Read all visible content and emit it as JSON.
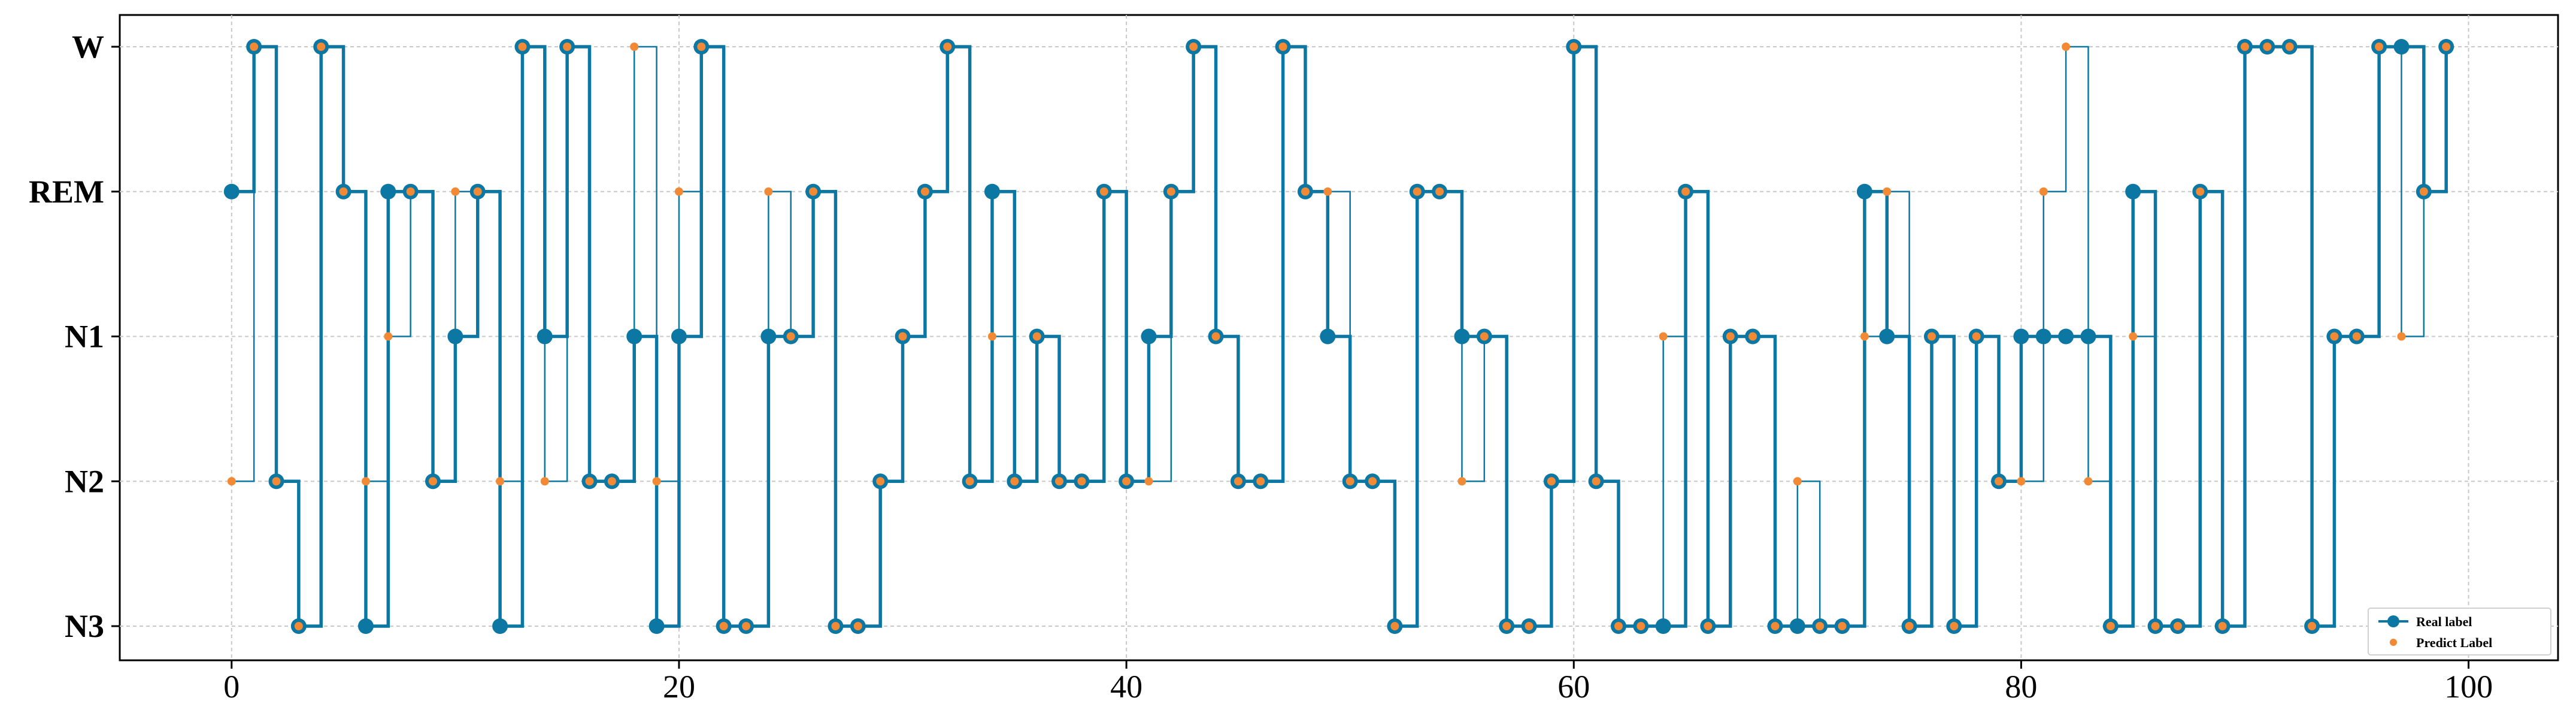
{
  "chart_data": {
    "type": "line",
    "title": "",
    "xlabel": "",
    "ylabel": "",
    "xlim": [
      -5,
      104
    ],
    "xticks": [
      0,
      20,
      40,
      60,
      80,
      100
    ],
    "y_categories": [
      "N3",
      "N2",
      "N1",
      "REM",
      "W"
    ],
    "grid": true,
    "legend_position": "lower-right",
    "colors": {
      "real": "#0c77a3",
      "predict": "#f28a35",
      "grid": "#c8c8c8",
      "axis": "#000000"
    },
    "series": [
      {
        "name": "Real label",
        "style": "steps-post with circle markers",
        "x": [
          0,
          1,
          2,
          3,
          4,
          5,
          6,
          7,
          8,
          9,
          10,
          11,
          12,
          13,
          14,
          15,
          16,
          17,
          18,
          19,
          20,
          21,
          22,
          23,
          24,
          25,
          26,
          27,
          28,
          29,
          30,
          31,
          32,
          33,
          34,
          35,
          36,
          37,
          38,
          39,
          40,
          41,
          42,
          43,
          44,
          45,
          46,
          47,
          48,
          49,
          50,
          51,
          52,
          53,
          54,
          55,
          56,
          57,
          58,
          59,
          60,
          61,
          62,
          63,
          64,
          65,
          66,
          67,
          68,
          69,
          70,
          71,
          72,
          73,
          74,
          75,
          76,
          77,
          78,
          79,
          80,
          81,
          82,
          83,
          84,
          85,
          86,
          87,
          88,
          89,
          90,
          91,
          92,
          93,
          94,
          95,
          96,
          97,
          98,
          99
        ],
        "values": [
          "REM",
          "W",
          "N2",
          "N3",
          "W",
          "REM",
          "N3",
          "REM",
          "REM",
          "N2",
          "N1",
          "REM",
          "N3",
          "W",
          "N1",
          "W",
          "N2",
          "N2",
          "N1",
          "N3",
          "N1",
          "W",
          "N3",
          "N3",
          "N1",
          "N1",
          "REM",
          "N3",
          "N3",
          "N2",
          "N1",
          "REM",
          "W",
          "N2",
          "REM",
          "N2",
          "N1",
          "N2",
          "N2",
          "REM",
          "N2",
          "N1",
          "REM",
          "W",
          "N1",
          "N2",
          "N2",
          "W",
          "REM",
          "N1",
          "N2",
          "N2",
          "N3",
          "REM",
          "REM",
          "N1",
          "N1",
          "N3",
          "N3",
          "N2",
          "W",
          "N2",
          "N3",
          "N3",
          "N3",
          "REM",
          "N3",
          "N1",
          "N1",
          "N3",
          "N3",
          "N3",
          "N3",
          "REM",
          "N1",
          "N3",
          "N1",
          "N3",
          "N1",
          "N2",
          "N1",
          "N1",
          "N1",
          "N1",
          "N3",
          "REM",
          "N3",
          "N3",
          "REM",
          "N3",
          "W",
          "W",
          "W",
          "N3",
          "N1",
          "N1",
          "W",
          "W",
          "REM",
          "W"
        ]
      },
      {
        "name": "Predict Label",
        "style": "thin steps-post line with dot markers",
        "x": [
          0,
          1,
          2,
          3,
          4,
          5,
          6,
          7,
          8,
          9,
          10,
          11,
          12,
          13,
          14,
          15,
          16,
          17,
          18,
          19,
          20,
          21,
          22,
          23,
          24,
          25,
          26,
          27,
          28,
          29,
          30,
          31,
          32,
          33,
          34,
          35,
          36,
          37,
          38,
          39,
          40,
          41,
          42,
          43,
          44,
          45,
          46,
          47,
          48,
          49,
          50,
          51,
          52,
          53,
          54,
          55,
          56,
          57,
          58,
          59,
          60,
          61,
          62,
          63,
          64,
          65,
          66,
          67,
          68,
          69,
          70,
          71,
          72,
          73,
          74,
          75,
          76,
          77,
          78,
          79,
          80,
          81,
          82,
          83,
          84,
          85,
          86,
          87,
          88,
          89,
          90,
          91,
          92,
          93,
          94,
          95,
          96,
          97,
          98,
          99
        ],
        "values": [
          "N2",
          "W",
          "N2",
          "N3",
          "W",
          "REM",
          "N2",
          "N1",
          "REM",
          "N2",
          "REM",
          "REM",
          "N2",
          "W",
          "N2",
          "W",
          "N2",
          "N2",
          "W",
          "N2",
          "REM",
          "W",
          "N3",
          "N3",
          "REM",
          "N1",
          "REM",
          "N3",
          "N3",
          "N2",
          "N1",
          "REM",
          "W",
          "N2",
          "N1",
          "N2",
          "N1",
          "N2",
          "N2",
          "REM",
          "N2",
          "N2",
          "REM",
          "W",
          "N1",
          "N2",
          "N2",
          "W",
          "REM",
          "REM",
          "N2",
          "N2",
          "N3",
          "REM",
          "REM",
          "N2",
          "N1",
          "N3",
          "N3",
          "N2",
          "W",
          "N2",
          "N3",
          "N3",
          "N1",
          "REM",
          "N3",
          "N1",
          "N1",
          "N3",
          "N2",
          "N3",
          "N3",
          "N1",
          "REM",
          "N3",
          "N1",
          "N3",
          "N1",
          "N2",
          "N2",
          "REM",
          "W",
          "N2",
          "N3",
          "N1",
          "N3",
          "N3",
          "REM",
          "N3",
          "W",
          "W",
          "W",
          "N3",
          "N1",
          "N1",
          "W",
          "N1",
          "REM",
          "W"
        ]
      }
    ]
  }
}
